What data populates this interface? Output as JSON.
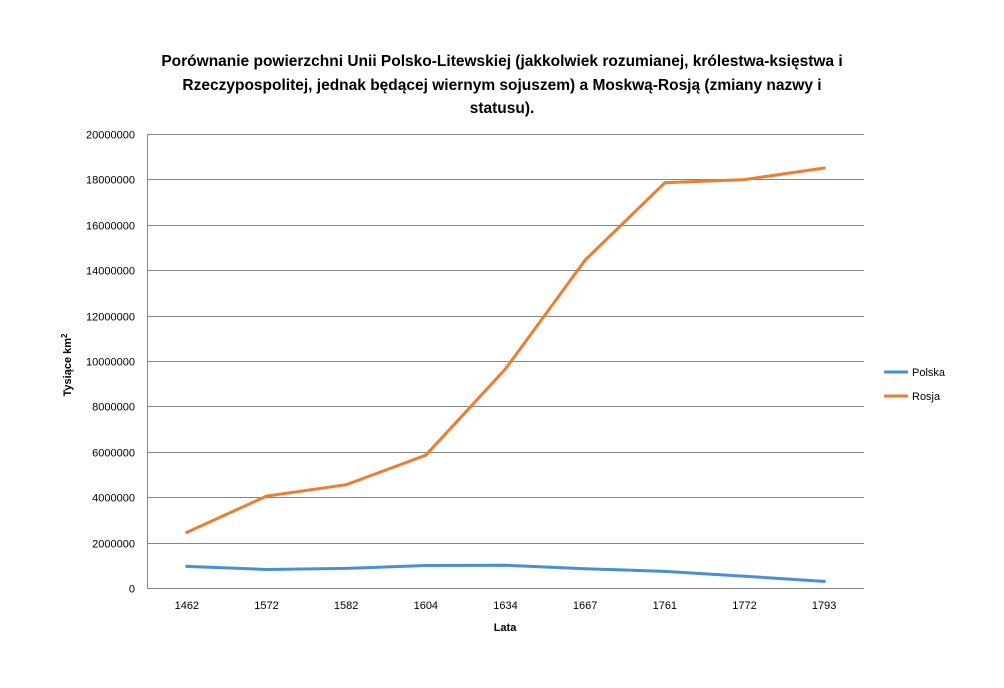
{
  "chart_data": {
    "type": "line",
    "title_lines": [
      "Porównanie powierzchni Unii Polsko-Litewskiej (jakkolwiek rozumianej, królestwa-księstwa i",
      "Rzeczypospolitej, jednak będącej wiernym sojuszem) a Moskwą-Rosją (zmiany nazwy i",
      "statusu)."
    ],
    "xlabel": "Lata",
    "ylabel": "Tysiące  km",
    "ylabel_superscript": "2",
    "categories": [
      "1462",
      "1572",
      "1582",
      "1604",
      "1634",
      "1667",
      "1761",
      "1772",
      "1793"
    ],
    "ylim": [
      0,
      20000000
    ],
    "yticks": [
      "0",
      "2000000",
      "4000000",
      "6000000",
      "8000000",
      "10000000",
      "12000000",
      "14000000",
      "16000000",
      "18000000",
      "20000000"
    ],
    "grid": true,
    "legend_position": "right",
    "series": [
      {
        "name": "Polska",
        "color": "#4a8fd6",
        "values": [
          950000,
          815000,
          865000,
          990000,
          1000000,
          850000,
          733000,
          520000,
          290000
        ]
      },
      {
        "name": "Rosja",
        "color": "#ed7d31",
        "values": [
          2450000,
          4050000,
          4550000,
          5850000,
          9650000,
          14450000,
          17850000,
          17990000,
          18500000
        ]
      }
    ]
  }
}
